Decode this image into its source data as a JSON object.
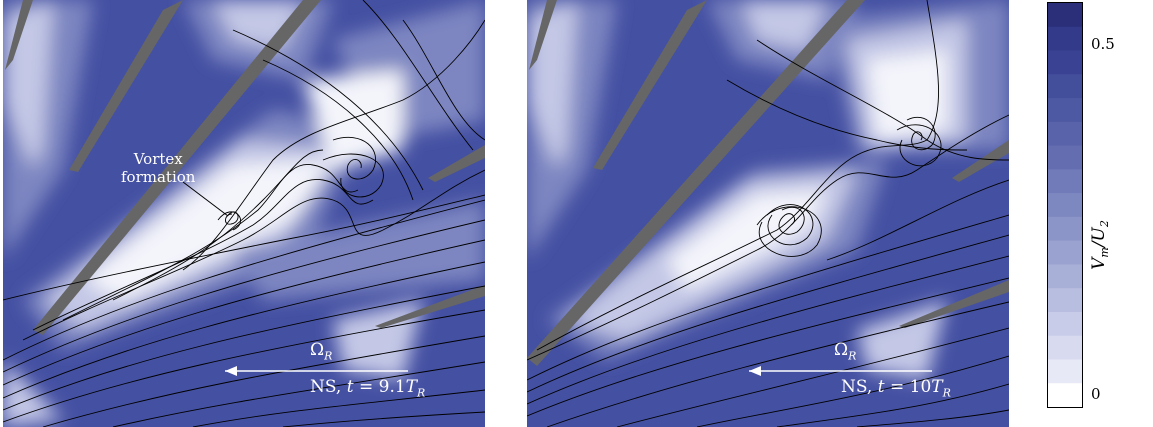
{
  "panels": [
    {
      "id": "left",
      "annotation": {
        "line1": "Vortex",
        "line2": "formation"
      },
      "omega": {
        "symbol": "Ω",
        "sub": "R"
      },
      "caption": {
        "prefix": "NS, ",
        "t": "t",
        "eq": " = 9.1",
        "T": "T",
        "sub": "R"
      }
    },
    {
      "id": "right",
      "omega": {
        "symbol": "Ω",
        "sub": "R"
      },
      "caption": {
        "prefix": "NS, ",
        "t": "t",
        "eq": " = 10",
        "T": "T",
        "sub": "R"
      }
    }
  ],
  "colorbar": {
    "title_main": "V",
    "title_sub1": "m",
    "title_slash": "/",
    "title_main2": "U",
    "title_sub2": "2",
    "tick_top": "0.5",
    "tick_bottom": "0",
    "levels": [
      "#2b2f7a",
      "#333a8a",
      "#3a4393",
      "#444f9c",
      "#4e59a3",
      "#5963aa",
      "#656db1",
      "#717bb9",
      "#7e88c0",
      "#8c95c8",
      "#9aa2d0",
      "#a9b0d8",
      "#b8bee0",
      "#c8cce8",
      "#d8dbf0",
      "#e8e9f6",
      "#ffffff"
    ]
  },
  "colors": {
    "deep": "#4450a2",
    "mid": "#7d86c1",
    "light": "#c4c8e6",
    "white": "#f4f5fb",
    "blade": "#666666"
  }
}
